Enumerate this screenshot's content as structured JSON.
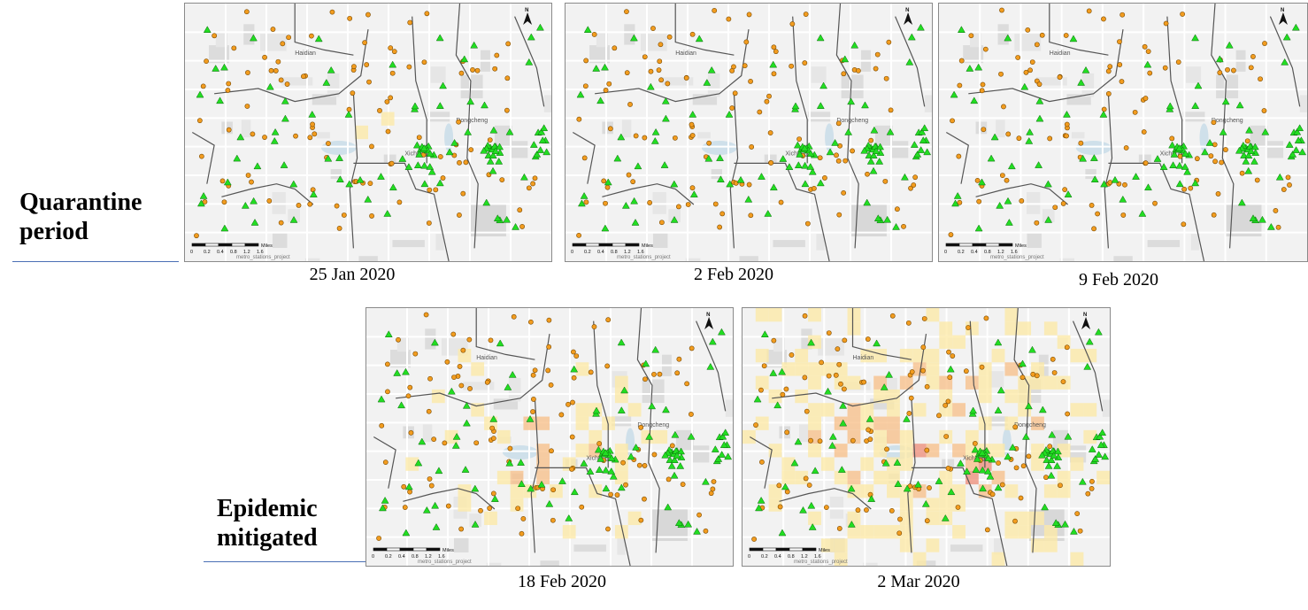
{
  "groups": [
    {
      "label_line1": "Quarantine",
      "label_line2": "period",
      "maps": [
        {
          "date": "25 Jan 2020",
          "intensity": 0.3,
          "seed": 11
        },
        {
          "date": "2 Feb 2020",
          "intensity": 0.22,
          "seed": 23
        },
        {
          "date": "9 Feb 2020",
          "intensity": 0.26,
          "seed": 37
        }
      ]
    },
    {
      "label_line1": "Epidemic",
      "label_line2": "mitigated",
      "maps": [
        {
          "date": "18 Feb 2020",
          "intensity": 0.62,
          "seed": 41
        },
        {
          "date": "2 Mar 2020",
          "intensity": 0.82,
          "seed": 59
        }
      ]
    }
  ],
  "map_labels": {
    "district_west": "Haidian",
    "district_east": "Dongcheng",
    "district_center": "Xicheng",
    "scale_unit": "Miles",
    "scale_ticks": [
      "0",
      "0.2",
      "0.4",
      "0.8",
      "1.2",
      "1.6"
    ],
    "layer_name": "metro_stations_project"
  },
  "colors": {
    "heat_low": "#fde9a6",
    "heat_mid": "#f7c08a",
    "heat_high": "#ee8f7c",
    "station_green": "#22dd22",
    "poi_orange": "#f29c1f"
  },
  "icons": {
    "north_arrow": "north-arrow-icon",
    "station": "triangle-icon",
    "poi": "circle-icon"
  }
}
